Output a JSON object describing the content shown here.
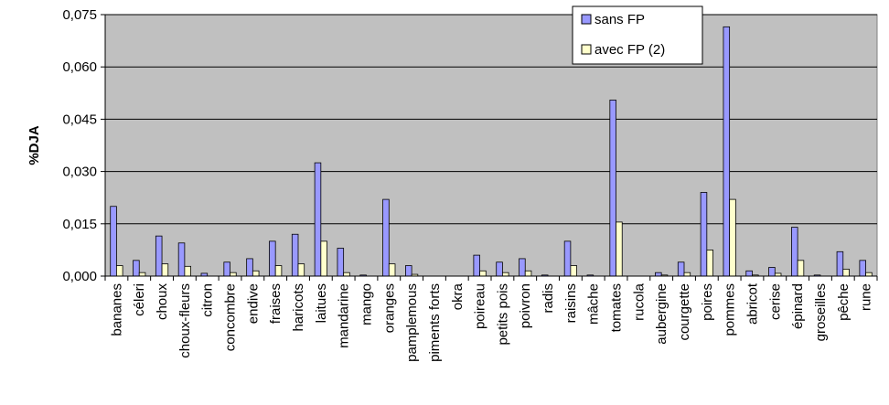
{
  "chart_data": {
    "type": "bar",
    "title": "",
    "xlabel": "",
    "ylabel": "%DJA",
    "ylim": [
      0,
      0.075
    ],
    "yticks": [
      "0,000",
      "0,015",
      "0,030",
      "0,045",
      "0,060",
      "0,075"
    ],
    "ytick_values": [
      0,
      0.015,
      0.03,
      0.045,
      0.06,
      0.075
    ],
    "grid": true,
    "legend": "top-right",
    "plot_background": "#c0c0c0",
    "categories": [
      "bananes",
      "céleri",
      "choux",
      "choux-fleurs",
      "citron",
      "concombre",
      "endive",
      "fraises",
      "haricots",
      "laitues",
      "mandarine",
      "mango",
      "oranges",
      "pamplemous",
      "piments forts",
      "okra",
      "poireau",
      "petits pois",
      "poivron",
      "radis",
      "raisins",
      "mâche",
      "tomates",
      "rucola",
      "aubergine",
      "courgette",
      "poires",
      "pommes",
      "abricot",
      "cerise",
      "épinard",
      "groseilles",
      "pêche",
      "rune"
    ],
    "series": [
      {
        "name": "sans FP",
        "color": "#9999ff",
        "values": [
          0.02,
          0.0045,
          0.0115,
          0.0095,
          0.0008,
          0.004,
          0.005,
          0.01,
          0.012,
          0.0325,
          0.008,
          0.0003,
          0.022,
          0.003,
          0,
          0,
          0.006,
          0.004,
          0.005,
          0.0003,
          0.01,
          0.0003,
          0.0505,
          0,
          0.001,
          0.004,
          0.024,
          0.0715,
          0.0015,
          0.0025,
          0.014,
          0.0003,
          0.007,
          0.0045
        ]
      },
      {
        "name": "avec FP (2)",
        "color": "#ffffcc",
        "values": [
          0.003,
          0.001,
          0.0035,
          0.0028,
          0,
          0.001,
          0.0015,
          0.003,
          0.0035,
          0.01,
          0.001,
          0,
          0.0035,
          0.0005,
          0,
          0,
          0.0015,
          0.001,
          0.0015,
          0,
          0.003,
          0,
          0.0155,
          0,
          0.0003,
          0.001,
          0.0075,
          0.022,
          0.0003,
          0.0008,
          0.0045,
          0,
          0.002,
          0.001
        ]
      }
    ]
  }
}
